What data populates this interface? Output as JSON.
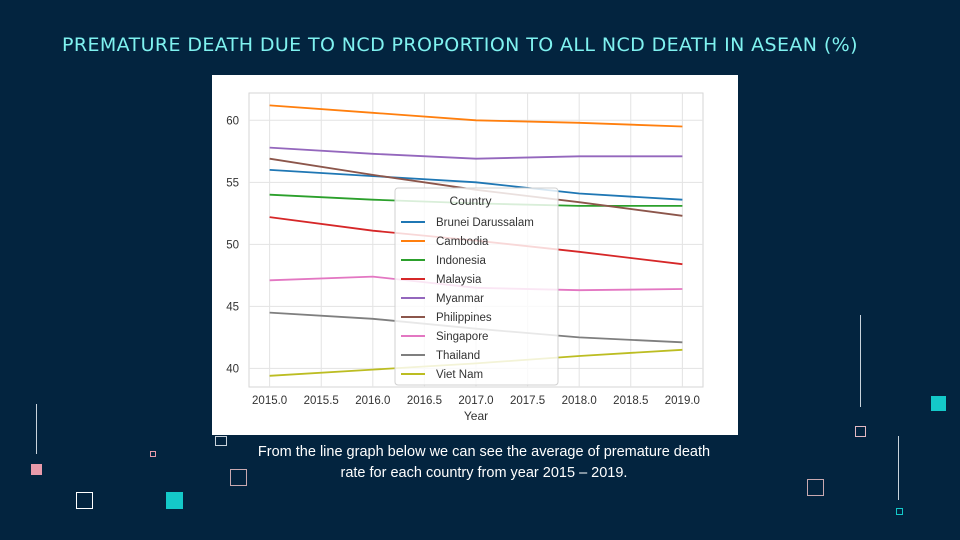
{
  "slide": {
    "title": "PREMATURE DEATH DUE TO NCD PROPORTION TO ALL NCD DEATH IN ASEAN (%)",
    "caption_line1": "From the line graph below we can see the average of premature death",
    "caption_line2": "rate for each country from year 2015 – 2019."
  },
  "chart_data": {
    "type": "line",
    "title": "",
    "xlabel": "Year",
    "ylabel": "",
    "x": [
      2015,
      2016,
      2017,
      2018,
      2019
    ],
    "xlim": [
      2014.8,
      2019.2
    ],
    "ylim": [
      38.5,
      62.2
    ],
    "xticks": [
      "2015.0",
      "2015.5",
      "2016.0",
      "2016.5",
      "2017.0",
      "2017.5",
      "2018.0",
      "2018.5",
      "2019.0"
    ],
    "yticks": [
      "40",
      "45",
      "50",
      "55",
      "60"
    ],
    "legend_title": "Country",
    "legend_position": "center",
    "grid": true,
    "series": [
      {
        "name": "Brunei Darussalam",
        "color": "#1f77b4",
        "values": [
          56.0,
          55.5,
          55.0,
          54.1,
          53.6
        ]
      },
      {
        "name": "Cambodia",
        "color": "#ff7f0e",
        "values": [
          61.2,
          60.6,
          60.0,
          59.8,
          59.5
        ]
      },
      {
        "name": "Indonesia",
        "color": "#2ca02c",
        "values": [
          54.0,
          53.6,
          53.3,
          53.1,
          53.1
        ]
      },
      {
        "name": "Malaysia",
        "color": "#d62728",
        "values": [
          52.2,
          51.1,
          50.3,
          49.4,
          48.4
        ]
      },
      {
        "name": "Myanmar",
        "color": "#9467bd",
        "values": [
          57.8,
          57.3,
          56.9,
          57.1,
          57.1
        ]
      },
      {
        "name": "Philippines",
        "color": "#8c564b",
        "values": [
          56.9,
          55.6,
          54.4,
          53.4,
          52.3
        ]
      },
      {
        "name": "Singapore",
        "color": "#e377c2",
        "values": [
          47.1,
          47.4,
          46.5,
          46.3,
          46.4
        ]
      },
      {
        "name": "Thailand",
        "color": "#7f7f7f",
        "values": [
          44.5,
          44.0,
          43.2,
          42.5,
          42.1
        ]
      },
      {
        "name": "Viet Nam",
        "color": "#bcbd22",
        "values": [
          39.4,
          39.9,
          40.4,
          41.0,
          41.5
        ]
      }
    ]
  }
}
